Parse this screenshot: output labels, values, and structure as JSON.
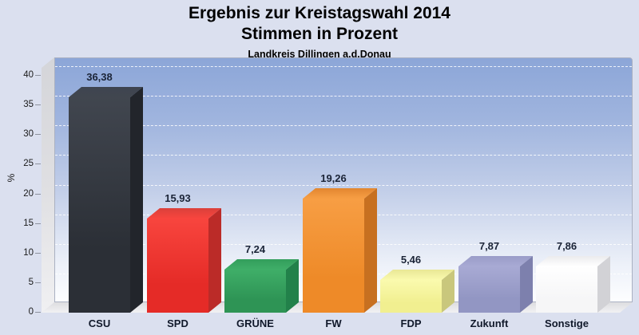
{
  "title": {
    "line1": "Ergebnis zur Kreistagswahl 2014",
    "line2": "Stimmen in Prozent",
    "subtitle": "Landkreis Dillingen a.d.Donau"
  },
  "chart_data": {
    "type": "bar",
    "title": "Ergebnis zur Kreistagswahl 2014",
    "subtitle2": "Stimmen in Prozent",
    "subtitle3": "Landkreis Dillingen a.d.Donau",
    "categories": [
      "CSU",
      "SPD",
      "GRÜNE",
      "FW",
      "FDP",
      "Zukunft",
      "Sonstige"
    ],
    "values": [
      36.38,
      15.93,
      7.24,
      19.26,
      5.46,
      7.87,
      7.86
    ],
    "value_labels": [
      "36,38",
      "15,93",
      "7,24",
      "19,26",
      "5,46",
      "7,87",
      "7,86"
    ],
    "ylabel": "%",
    "yticks": [
      0,
      5,
      10,
      15,
      20,
      25,
      30,
      35,
      40
    ],
    "ylim": [
      0,
      42
    ],
    "grid": true,
    "legend_position": "none",
    "bar_style": "3d",
    "bar_colors": [
      {
        "name": "CSU",
        "front_light": "#41464f",
        "front": "#2b2f36",
        "top": "#3e4450",
        "side": "#22252b"
      },
      {
        "name": "SPD",
        "front_light": "#f8453e",
        "front": "#e52b27",
        "top": "#db403a",
        "side": "#bb2b28"
      },
      {
        "name": "GRÜNE",
        "front_light": "#3fae68",
        "front": "#2e9455",
        "top": "#339e5c",
        "side": "#22814a"
      },
      {
        "name": "FW",
        "front_light": "#f79e44",
        "front": "#ee8a28",
        "top": "#e2862f",
        "side": "#c77020"
      },
      {
        "name": "FDP",
        "front_light": "#fafaae",
        "front": "#f1ef90",
        "top": "#e9e795",
        "side": "#c9c77c"
      },
      {
        "name": "Zukunft",
        "front_light": "#a8aad4",
        "front": "#9296c3",
        "top": "#9a9cc8",
        "side": "#7d80ad"
      },
      {
        "name": "Sonstige",
        "front_light": "#ffffff",
        "front": "#f6f6f7",
        "top": "#ebebed",
        "side": "#d2d2d6"
      }
    ],
    "colors": {
      "page_bg": "#dbe0ef",
      "back_wall_top": "#8ca6d8",
      "back_wall_bottom": "#fdfeff",
      "side_wall": "#d9dadd",
      "floor": "#e9e9eb",
      "grid": "#ffffff",
      "value_label": "#1b2437",
      "category_label": "#10182a",
      "tick_label": "#1a1a1a",
      "title": "#000000"
    }
  }
}
